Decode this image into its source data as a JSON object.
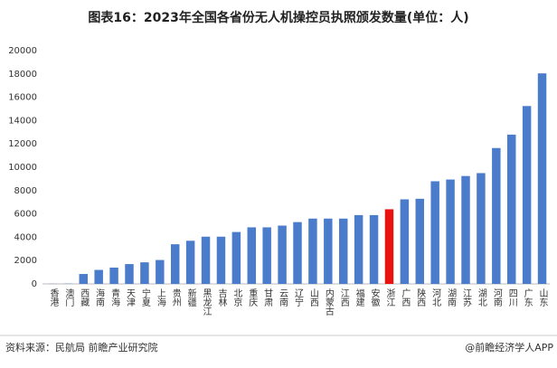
{
  "chart_data": {
    "type": "bar",
    "title": "图表16：2023年全国各省份无人机操控员执照颁发数量(单位：人)",
    "categories": [
      "香港",
      "澳门",
      "西藏",
      "海南",
      "青海",
      "天津",
      "宁夏",
      "上海",
      "贵州",
      "新疆",
      "黑龙江",
      "吉林",
      "北京",
      "重庆",
      "甘肃",
      "云南",
      "辽宁",
      "山西",
      "内蒙古",
      "江西",
      "福建",
      "安徽",
      "浙江",
      "广西",
      "陕西",
      "河北",
      "湖南",
      "江苏",
      "湖北",
      "河南",
      "四川",
      "广东",
      "山东"
    ],
    "values": [
      10,
      20,
      850,
      1200,
      1400,
      1700,
      1850,
      2050,
      3400,
      3700,
      4050,
      4050,
      4450,
      4850,
      4850,
      5000,
      5300,
      5600,
      5600,
      5600,
      5900,
      5900,
      6400,
      7250,
      7300,
      8800,
      8950,
      9250,
      9500,
      11650,
      12800,
      15250,
      18050
    ],
    "colors": [
      "#4a7ccb",
      "#4a7ccb",
      "#4a7ccb",
      "#4a7ccb",
      "#4a7ccb",
      "#4a7ccb",
      "#4a7ccb",
      "#4a7ccb",
      "#4a7ccb",
      "#4a7ccb",
      "#4a7ccb",
      "#4a7ccb",
      "#4a7ccb",
      "#4a7ccb",
      "#4a7ccb",
      "#4a7ccb",
      "#4a7ccb",
      "#4a7ccb",
      "#4a7ccb",
      "#4a7ccb",
      "#4a7ccb",
      "#4a7ccb",
      "#e8130f",
      "#4a7ccb",
      "#4a7ccb",
      "#4a7ccb",
      "#4a7ccb",
      "#4a7ccb",
      "#4a7ccb",
      "#4a7ccb",
      "#4a7ccb",
      "#4a7ccb",
      "#4a7ccb"
    ],
    "ylim": [
      0,
      20000
    ],
    "yticks": [
      0,
      2000,
      4000,
      6000,
      8000,
      10000,
      12000,
      14000,
      16000,
      18000,
      20000
    ],
    "grid": false,
    "source": "资料来源：民航局 前瞻产业研究院",
    "brand": "@前瞻经济学人APP"
  }
}
